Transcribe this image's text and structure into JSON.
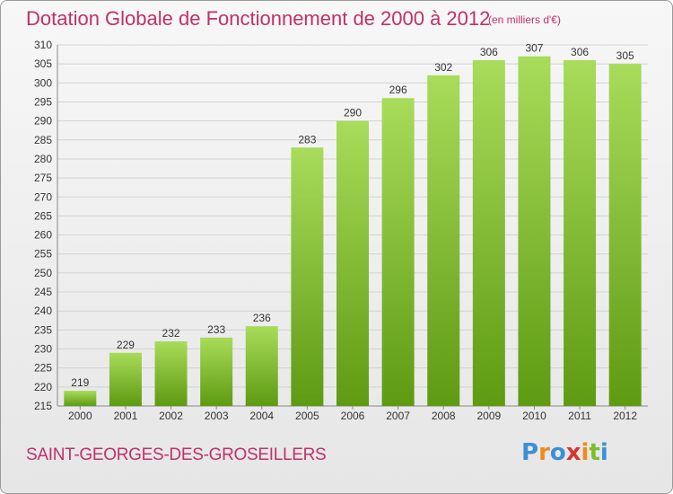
{
  "page": {
    "title": "Dotation Globale de Fonctionnement de 2000 à 2012",
    "unit": "(en milliers d'€)",
    "commune": "SAINT-GEORGES-DES-GROSEILLERS",
    "logo": "Proxiti"
  },
  "colors": {
    "title": "#c0306b",
    "bar_light": "#a8dc5a",
    "bar_dark": "#5e9a12",
    "logo_letters": [
      "#3b8fd8",
      "#f08a1c",
      "#3b8fd8",
      "#d8342e",
      "#f08a1c",
      "#7bbf2a",
      "#3b8fd8"
    ]
  },
  "chart_data": {
    "type": "bar",
    "title": "Dotation Globale de Fonctionnement de 2000 à 2012",
    "categories": [
      "2000",
      "2001",
      "2002",
      "2003",
      "2004",
      "2005",
      "2006",
      "2007",
      "2008",
      "2009",
      "2010",
      "2011",
      "2012"
    ],
    "values": [
      219,
      229,
      232,
      233,
      236,
      283,
      290,
      296,
      302,
      306,
      307,
      306,
      305
    ],
    "xlabel": "",
    "ylabel": "",
    "ylim": [
      215,
      310
    ],
    "yticks": [
      215,
      220,
      225,
      230,
      235,
      240,
      245,
      250,
      255,
      260,
      265,
      270,
      275,
      280,
      285,
      290,
      295,
      300,
      305,
      310
    ],
    "grid": true,
    "legend": "none"
  }
}
